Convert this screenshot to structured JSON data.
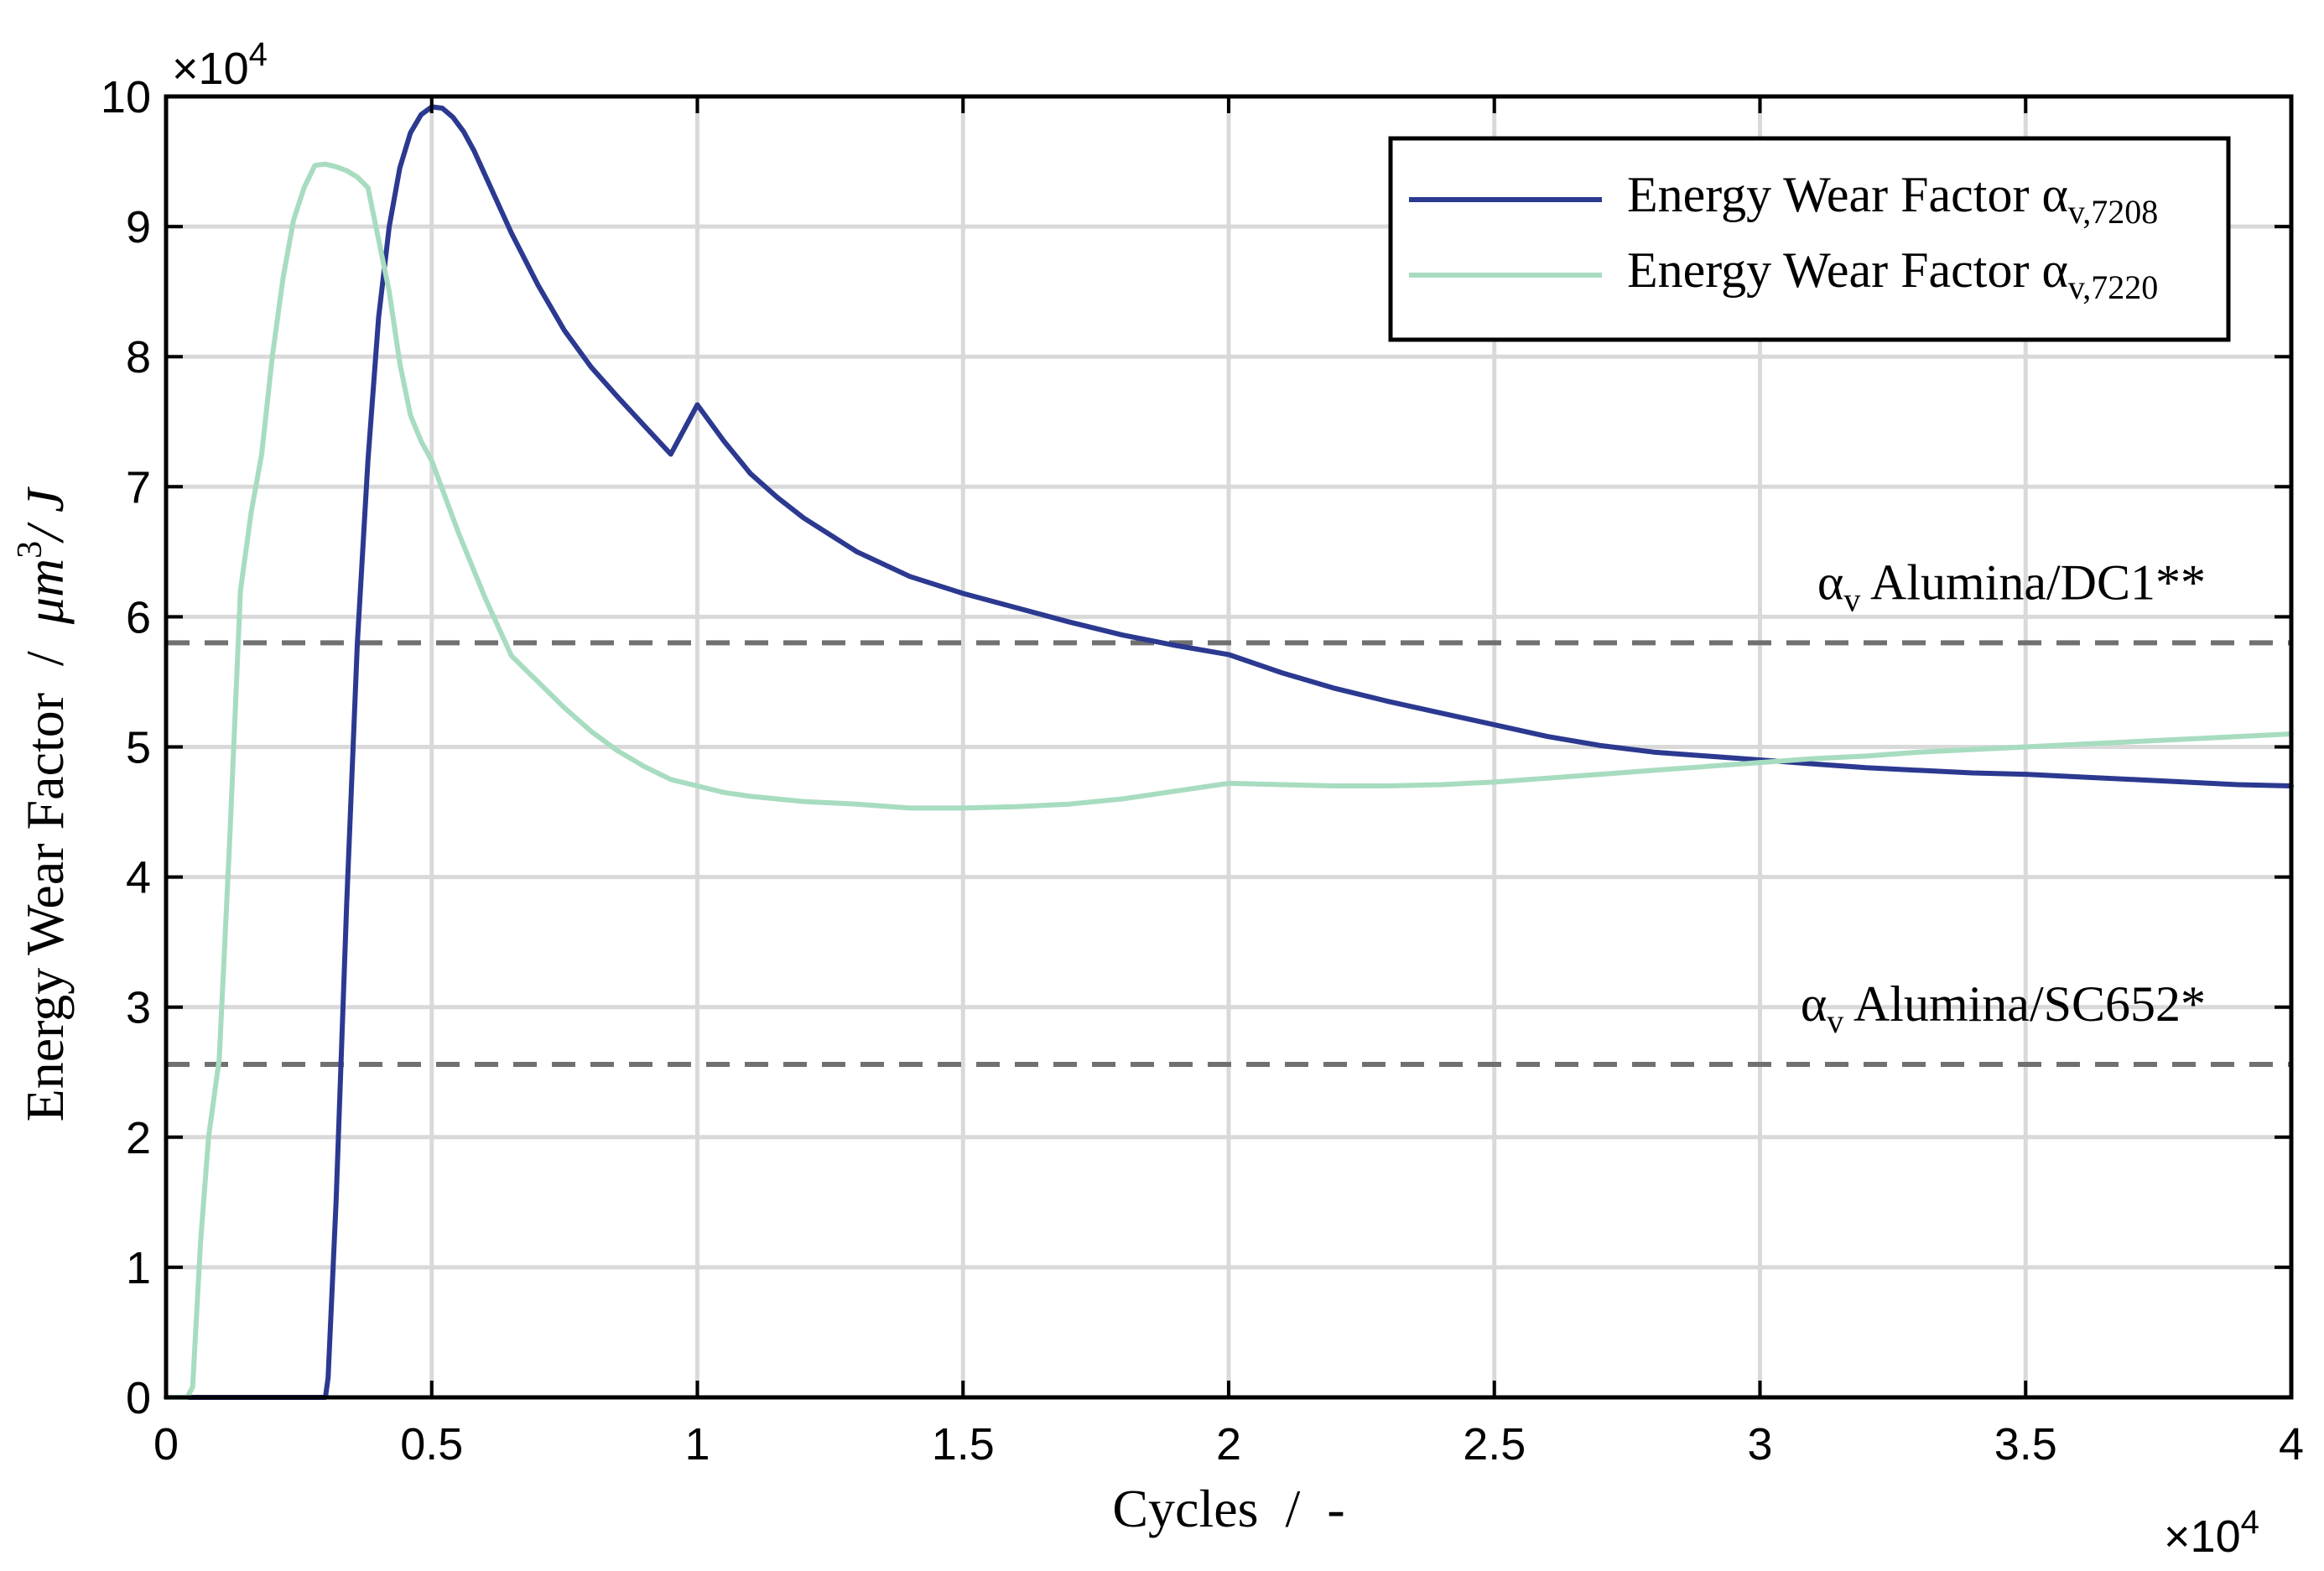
{
  "chart_data": {
    "type": "line",
    "title": "",
    "xlabel": "Cycles  /  -",
    "ylabel_main": "Energy Wear Factor  /  ",
    "ylabel_unit": "μm",
    "ylabel_unit_power": "3",
    "ylabel_unit_tail": "/ J",
    "x_multiplier": "×10",
    "x_multiplier_exp": "4",
    "y_multiplier": "×10",
    "y_multiplier_exp": "4",
    "xlim": [
      0,
      40000
    ],
    "ylim": [
      0,
      100000
    ],
    "grid": true,
    "legend_position": "top-right",
    "x_ticks": [
      {
        "value": 0,
        "label": "0"
      },
      {
        "value": 5000,
        "label": "0.5"
      },
      {
        "value": 10000,
        "label": "1"
      },
      {
        "value": 15000,
        "label": "1.5"
      },
      {
        "value": 20000,
        "label": "2"
      },
      {
        "value": 25000,
        "label": "2.5"
      },
      {
        "value": 30000,
        "label": "3"
      },
      {
        "value": 35000,
        "label": "3.5"
      },
      {
        "value": 40000,
        "label": "4"
      }
    ],
    "y_ticks": [
      {
        "value": 0,
        "label": "0"
      },
      {
        "value": 10000,
        "label": "1"
      },
      {
        "value": 20000,
        "label": "2"
      },
      {
        "value": 30000,
        "label": "3"
      },
      {
        "value": 40000,
        "label": "4"
      },
      {
        "value": 50000,
        "label": "5"
      },
      {
        "value": 60000,
        "label": "6"
      },
      {
        "value": 70000,
        "label": "7"
      },
      {
        "value": 80000,
        "label": "8"
      },
      {
        "value": 90000,
        "label": "9"
      },
      {
        "value": 100000,
        "label": "10"
      }
    ],
    "series": [
      {
        "name": "Energy Wear Factor α",
        "subscript": "v,7208",
        "color": "#2b3990",
        "x": [
          0,
          3000,
          3050,
          3200,
          3400,
          3600,
          3800,
          4000,
          4200,
          4400,
          4600,
          4800,
          5000,
          5200,
          5400,
          5600,
          5800,
          6000,
          6500,
          7000,
          7500,
          8000,
          8500,
          9000,
          9500,
          10000,
          10500,
          11000,
          11500,
          12000,
          13000,
          14000,
          15000,
          16000,
          17000,
          18000,
          19000,
          20000,
          21000,
          22000,
          23000,
          24000,
          25000,
          26000,
          27000,
          28000,
          29000,
          30000,
          31000,
          32000,
          33000,
          34000,
          35000,
          36000,
          37000,
          38000,
          39000,
          40000
        ],
        "values": [
          0,
          0,
          1500,
          15000,
          38000,
          58000,
          72000,
          83000,
          90000,
          94500,
          97200,
          98600,
          99200,
          99100,
          98400,
          97300,
          95800,
          94000,
          89500,
          85500,
          82000,
          79200,
          76900,
          74700,
          72500,
          76300,
          73500,
          71000,
          69200,
          67600,
          65000,
          63100,
          61800,
          60700,
          59600,
          58600,
          57800,
          57100,
          55700,
          54500,
          53500,
          52600,
          51700,
          50800,
          50100,
          49600,
          49300,
          49000,
          48700,
          48400,
          48200,
          48000,
          47900,
          47700,
          47500,
          47300,
          47100,
          47000
        ]
      },
      {
        "name": "Energy Wear Factor α",
        "subscript": "v,7220",
        "color": "#a8dcc0",
        "x": [
          0,
          400,
          500,
          650,
          800,
          1000,
          1200,
          1400,
          1600,
          1800,
          2000,
          2200,
          2400,
          2600,
          2800,
          3000,
          3200,
          3400,
          3600,
          3800,
          4000,
          4200,
          4400,
          4600,
          4800,
          5000,
          5500,
          6000,
          6500,
          7000,
          7500,
          8000,
          8500,
          9000,
          9500,
          10000,
          10500,
          11000,
          11500,
          12000,
          13000,
          14000,
          15000,
          16000,
          17000,
          18000,
          19000,
          20000,
          21000,
          22000,
          23000,
          24000,
          25000,
          26000,
          27000,
          28000,
          29000,
          30000,
          31000,
          32000,
          33000,
          34000,
          35000,
          36000,
          37000,
          38000,
          39000,
          40000
        ],
        "values": [
          0,
          0,
          800,
          12000,
          20000,
          26000,
          43000,
          62000,
          68000,
          72500,
          80000,
          86000,
          90500,
          93000,
          94700,
          94800,
          94600,
          94300,
          93800,
          93000,
          89000,
          85000,
          79500,
          75500,
          73500,
          72000,
          66500,
          61500,
          57000,
          55000,
          53000,
          51200,
          49700,
          48500,
          47500,
          47000,
          46500,
          46200,
          46000,
          45800,
          45600,
          45300,
          45300,
          45400,
          45600,
          46000,
          46600,
          47200,
          47100,
          47000,
          47000,
          47100,
          47300,
          47600,
          47900,
          48200,
          48500,
          48800,
          49100,
          49300,
          49600,
          49800,
          50000,
          50200,
          50400,
          50600,
          50800,
          51000
        ]
      }
    ],
    "reference_lines": [
      {
        "name": "α",
        "subscript": "v",
        "label_tail": " Alumina/DC1**",
        "value": 58000,
        "color": "#707070"
      },
      {
        "name": "α",
        "subscript": "v",
        "label_tail": " Alumina/SC652*",
        "value": 25600,
        "color": "#707070"
      }
    ]
  }
}
